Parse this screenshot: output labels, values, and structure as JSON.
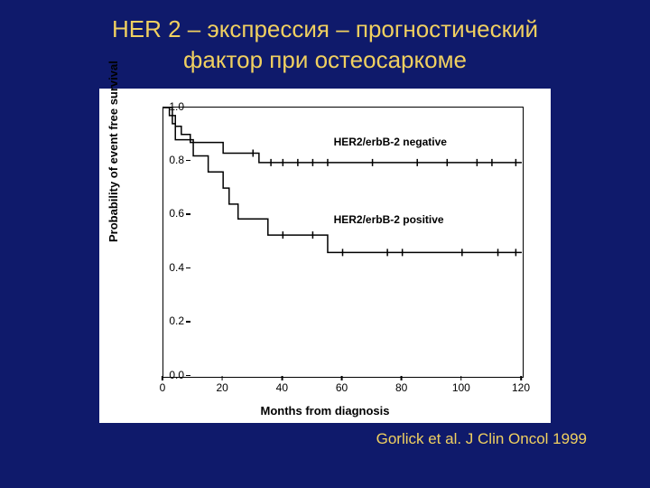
{
  "title_line1": "HER 2 – экспрессия – прогностический",
  "title_line2": "фактор при остеосаркоме",
  "credit": "Gorlick et al. J Clin Oncol 1999",
  "chart": {
    "type": "kaplan-meier",
    "background": "#ffffff",
    "line_color": "#000000",
    "line_width": 1.5,
    "ylabel": "Probability of event free survival",
    "xlabel": "Months from diagnosis",
    "xlim": [
      0,
      120
    ],
    "ylim": [
      0.0,
      1.0
    ],
    "xticks": [
      0,
      20,
      40,
      60,
      80,
      100,
      120
    ],
    "yticks": [
      0.0,
      0.2,
      0.4,
      0.6,
      0.8,
      1.0
    ],
    "series": {
      "negative": {
        "label": "HER2/erbB-2 negative",
        "label_pos": {
          "x": 57,
          "y": 0.87
        },
        "steps": [
          {
            "x": 0,
            "y": 1.0
          },
          {
            "x": 2,
            "y": 1.0
          },
          {
            "x": 2,
            "y": 0.97
          },
          {
            "x": 4,
            "y": 0.97
          },
          {
            "x": 4,
            "y": 0.93
          },
          {
            "x": 6,
            "y": 0.93
          },
          {
            "x": 6,
            "y": 0.9
          },
          {
            "x": 9,
            "y": 0.9
          },
          {
            "x": 9,
            "y": 0.87
          },
          {
            "x": 20,
            "y": 0.87
          },
          {
            "x": 20,
            "y": 0.83
          },
          {
            "x": 32,
            "y": 0.83
          },
          {
            "x": 32,
            "y": 0.795
          },
          {
            "x": 120,
            "y": 0.795
          }
        ],
        "censor": [
          {
            "x": 30,
            "y": 0.83
          },
          {
            "x": 36,
            "y": 0.795
          },
          {
            "x": 40,
            "y": 0.795
          },
          {
            "x": 45,
            "y": 0.795
          },
          {
            "x": 50,
            "y": 0.795
          },
          {
            "x": 55,
            "y": 0.795
          },
          {
            "x": 70,
            "y": 0.795
          },
          {
            "x": 85,
            "y": 0.795
          },
          {
            "x": 95,
            "y": 0.795
          },
          {
            "x": 105,
            "y": 0.795
          },
          {
            "x": 110,
            "y": 0.795
          },
          {
            "x": 118,
            "y": 0.795
          }
        ]
      },
      "positive": {
        "label": "HER2/erbB-2 positive",
        "label_pos": {
          "x": 57,
          "y": 0.58
        },
        "steps": [
          {
            "x": 0,
            "y": 1.0
          },
          {
            "x": 3,
            "y": 1.0
          },
          {
            "x": 3,
            "y": 0.94
          },
          {
            "x": 4,
            "y": 0.94
          },
          {
            "x": 4,
            "y": 0.88
          },
          {
            "x": 10,
            "y": 0.88
          },
          {
            "x": 10,
            "y": 0.82
          },
          {
            "x": 15,
            "y": 0.82
          },
          {
            "x": 15,
            "y": 0.76
          },
          {
            "x": 20,
            "y": 0.76
          },
          {
            "x": 20,
            "y": 0.7
          },
          {
            "x": 22,
            "y": 0.7
          },
          {
            "x": 22,
            "y": 0.64
          },
          {
            "x": 25,
            "y": 0.64
          },
          {
            "x": 25,
            "y": 0.585
          },
          {
            "x": 35,
            "y": 0.585
          },
          {
            "x": 35,
            "y": 0.525
          },
          {
            "x": 55,
            "y": 0.525
          },
          {
            "x": 55,
            "y": 0.46
          },
          {
            "x": 120,
            "y": 0.46
          }
        ],
        "censor": [
          {
            "x": 40,
            "y": 0.525
          },
          {
            "x": 50,
            "y": 0.525
          },
          {
            "x": 60,
            "y": 0.46
          },
          {
            "x": 75,
            "y": 0.46
          },
          {
            "x": 80,
            "y": 0.46
          },
          {
            "x": 100,
            "y": 0.46
          },
          {
            "x": 112,
            "y": 0.46
          },
          {
            "x": 118,
            "y": 0.46
          }
        ]
      }
    }
  }
}
